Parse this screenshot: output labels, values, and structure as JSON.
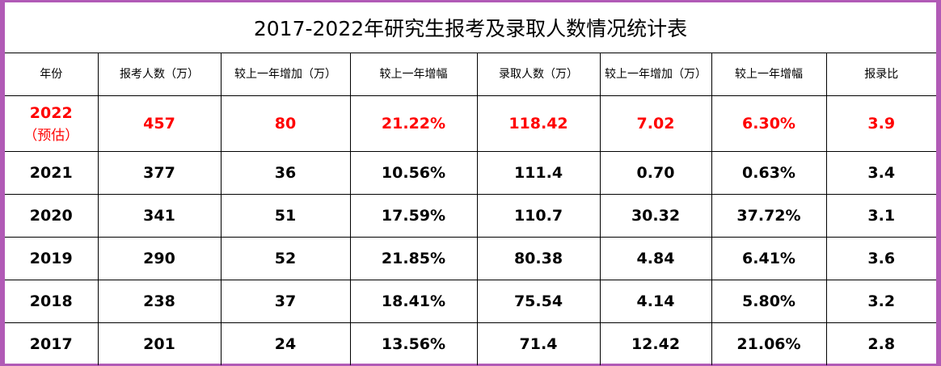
{
  "title": "2017-2022年研究生报考及录取人数情况统计表",
  "headers": [
    "年份",
    "报考人数（万）",
    "较上一年增加（万）",
    "较上一年增幅",
    "录取人数（万）",
    "较上一年增加（万）",
    "较上一年增幅",
    "报录比"
  ],
  "rows": [
    {
      "year": "2022",
      "note": "（预估）",
      "cells": [
        "457",
        "80",
        "21.22%",
        "118.42",
        "7.02",
        "6.30%",
        "3.9"
      ]
    },
    {
      "year": "2021",
      "cells": [
        "377",
        "36",
        "10.56%",
        "111.4",
        "0.70",
        "0.63%",
        "3.4"
      ]
    },
    {
      "year": "2020",
      "cells": [
        "341",
        "51",
        "17.59%",
        "110.7",
        "30.32",
        "37.72%",
        "3.1"
      ]
    },
    {
      "year": "2019",
      "cells": [
        "290",
        "52",
        "21.85%",
        "80.38",
        "4.84",
        "6.41%",
        "3.6"
      ]
    },
    {
      "year": "2018",
      "cells": [
        "238",
        "37",
        "18.41%",
        "75.54",
        "4.14",
        "5.80%",
        "3.2"
      ]
    },
    {
      "year": "2017",
      "cells": [
        "201",
        "24",
        "13.56%",
        "71.4",
        "12.42",
        "21.06%",
        "2.8"
      ]
    }
  ],
  "colors": {
    "frame": "#b15ab6",
    "highlight": "#ff0000",
    "text": "#000000"
  }
}
